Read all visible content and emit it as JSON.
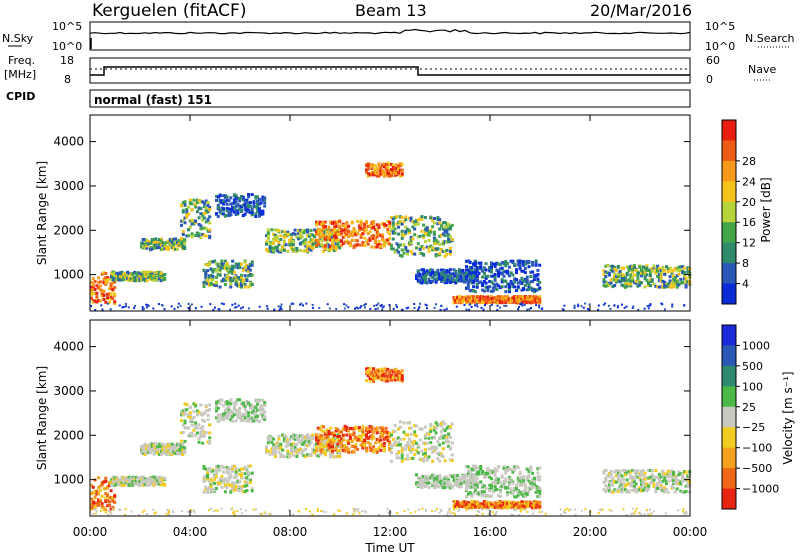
{
  "header": {
    "station": "Kerguelen (fitACF)",
    "beam": "Beam 13",
    "date": "20/Mar/2016"
  },
  "noise_panel": {
    "left_label": "N.Sky",
    "right_label": "N.Search",
    "tick_top_left": "10^5",
    "tick_bottom_left": "10^0",
    "tick_top_right": "10^5",
    "tick_bottom_right": "10^0"
  },
  "freq_panel": {
    "left_label_1": "Freq.",
    "left_label_2": "[MHz]",
    "right_label": "Nave",
    "left_ticks": [
      "18",
      "8"
    ],
    "right_ticks": [
      "60",
      "0"
    ]
  },
  "cpid": {
    "label": "CPID",
    "mode": "normal (fast) 151"
  },
  "chart_data": [
    {
      "type": "heatmap",
      "name": "power",
      "ylabel": "Slant Range [km]",
      "colorbar_label": "Power [dB]",
      "ylim": [
        180,
        4600
      ],
      "yticks": [
        1000,
        2000,
        3000,
        4000
      ],
      "colorbar_ticks": [
        "4",
        "8",
        "12",
        "16",
        "20",
        "24",
        "28"
      ],
      "colors": [
        "#0a2bd8",
        "#2a57b8",
        "#2f8a6a",
        "#44a548",
        "#b6d33a",
        "#f5c21a",
        "#f79a1a",
        "#ef5a14",
        "#e81f10"
      ]
    },
    {
      "type": "heatmap",
      "name": "velocity",
      "ylabel": "Slant Range [km]",
      "colorbar_label": "Velocity [m s⁻¹]",
      "ylim": [
        180,
        4600
      ],
      "yticks": [
        1000,
        2000,
        3000,
        4000
      ],
      "colorbar_ticks": [
        "1000",
        "500",
        "100",
        "25",
        "−25",
        "−100",
        "−500",
        "−1000"
      ],
      "colors": [
        "#1a2ad8",
        "#2a58b5",
        "#2d8a70",
        "#4cb848",
        "#c8c8c0",
        "#f2cc20",
        "#f5a020",
        "#ee6818",
        "#e82412"
      ]
    }
  ],
  "time_axis": {
    "label": "Time UT",
    "ticks": [
      "00:00",
      "04:00",
      "08:00",
      "12:00",
      "16:00",
      "20:00",
      "00:00"
    ]
  }
}
